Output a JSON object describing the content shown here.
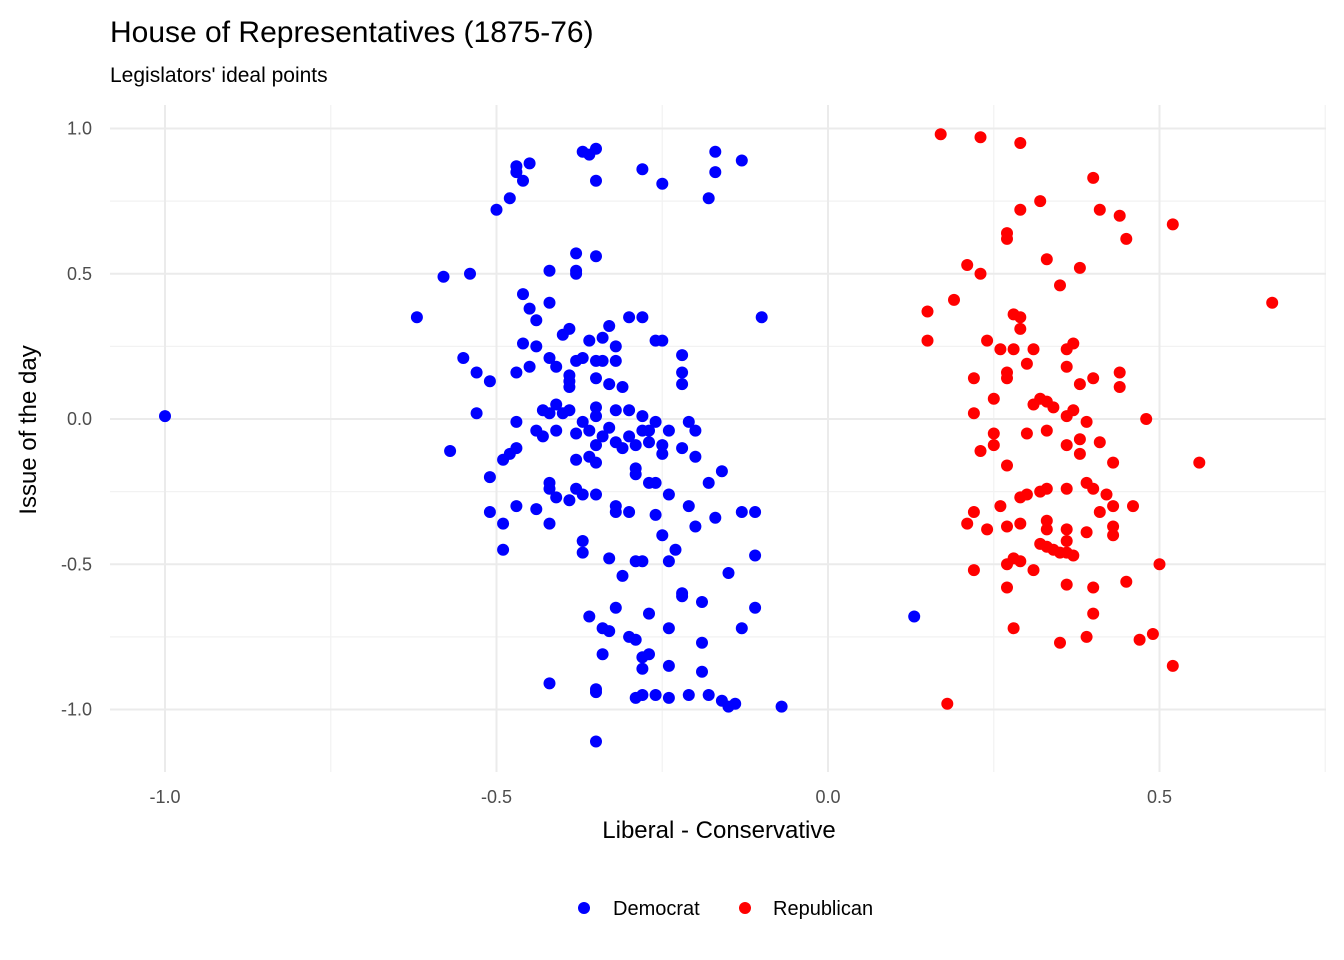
{
  "chart_data": {
    "type": "scatter",
    "title": "House of Representatives (1875-76)",
    "subtitle": "Legislators' ideal points",
    "xlabel": "Liberal - Conservative",
    "ylabel": "Issue of the day",
    "xlim": [
      -1.05,
      0.75
    ],
    "ylim": [
      -1.12,
      1.01
    ],
    "x_ticks": [
      -1.0,
      -0.5,
      0.0,
      0.5
    ],
    "x_tick_labels": [
      "-1.0",
      "-0.5",
      "0.0",
      "0.5"
    ],
    "y_ticks": [
      1.0,
      0.5,
      0.0,
      -0.5,
      -1.0
    ],
    "y_tick_labels": [
      "1.0",
      "0.5",
      "0.0",
      "-0.5",
      "-1.0"
    ],
    "grid": true,
    "legend_position": "bottom",
    "series": [
      {
        "name": "Democrat",
        "color": "#0000ff",
        "points": [
          [
            -1.0,
            0.01
          ],
          [
            -0.37,
            0.92
          ],
          [
            -0.36,
            0.91
          ],
          [
            -0.35,
            0.93
          ],
          [
            -0.47,
            0.87
          ],
          [
            -0.45,
            0.88
          ],
          [
            -0.47,
            0.85
          ],
          [
            -0.46,
            0.82
          ],
          [
            -0.35,
            0.82
          ],
          [
            -0.28,
            0.86
          ],
          [
            -0.25,
            0.81
          ],
          [
            -0.17,
            0.92
          ],
          [
            -0.17,
            0.85
          ],
          [
            -0.13,
            0.89
          ],
          [
            -0.48,
            0.76
          ],
          [
            -0.5,
            0.72
          ],
          [
            -0.18,
            0.76
          ],
          [
            -0.38,
            0.57
          ],
          [
            -0.35,
            0.56
          ],
          [
            -0.38,
            0.51
          ],
          [
            -0.38,
            0.5
          ],
          [
            -0.42,
            0.51
          ],
          [
            -0.58,
            0.49
          ],
          [
            -0.54,
            0.5
          ],
          [
            -0.46,
            0.43
          ],
          [
            -0.42,
            0.4
          ],
          [
            -0.45,
            0.38
          ],
          [
            -0.44,
            0.34
          ],
          [
            -0.62,
            0.35
          ],
          [
            -0.3,
            0.35
          ],
          [
            -0.28,
            0.35
          ],
          [
            -0.1,
            0.35
          ],
          [
            -0.33,
            0.32
          ],
          [
            -0.39,
            0.31
          ],
          [
            -0.4,
            0.29
          ],
          [
            -0.36,
            0.27
          ],
          [
            -0.34,
            0.28
          ],
          [
            -0.32,
            0.25
          ],
          [
            -0.26,
            0.27
          ],
          [
            -0.25,
            0.27
          ],
          [
            -0.46,
            0.26
          ],
          [
            -0.44,
            0.25
          ],
          [
            -0.42,
            0.21
          ],
          [
            -0.55,
            0.21
          ],
          [
            -0.53,
            0.16
          ],
          [
            -0.51,
            0.13
          ],
          [
            -0.47,
            0.16
          ],
          [
            -0.45,
            0.18
          ],
          [
            -0.41,
            0.18
          ],
          [
            -0.38,
            0.2
          ],
          [
            -0.37,
            0.21
          ],
          [
            -0.35,
            0.2
          ],
          [
            -0.34,
            0.2
          ],
          [
            -0.32,
            0.2
          ],
          [
            -0.39,
            0.15
          ],
          [
            -0.39,
            0.13
          ],
          [
            -0.39,
            0.11
          ],
          [
            -0.35,
            0.14
          ],
          [
            -0.33,
            0.12
          ],
          [
            -0.31,
            0.11
          ],
          [
            -0.22,
            0.22
          ],
          [
            -0.22,
            0.16
          ],
          [
            -0.22,
            0.12
          ],
          [
            -0.53,
            0.02
          ],
          [
            -0.47,
            -0.01
          ],
          [
            -0.43,
            0.03
          ],
          [
            -0.42,
            0.02
          ],
          [
            -0.41,
            0.05
          ],
          [
            -0.4,
            0.02
          ],
          [
            -0.39,
            0.03
          ],
          [
            -0.37,
            -0.01
          ],
          [
            -0.35,
            0.04
          ],
          [
            -0.35,
            0.01
          ],
          [
            -0.32,
            0.03
          ],
          [
            -0.3,
            0.03
          ],
          [
            -0.28,
            0.01
          ],
          [
            -0.26,
            -0.01
          ],
          [
            -0.21,
            -0.01
          ],
          [
            -0.57,
            -0.11
          ],
          [
            -0.44,
            -0.04
          ],
          [
            -0.43,
            -0.06
          ],
          [
            -0.41,
            -0.04
          ],
          [
            -0.38,
            -0.05
          ],
          [
            -0.36,
            -0.04
          ],
          [
            -0.35,
            -0.09
          ],
          [
            -0.34,
            -0.06
          ],
          [
            -0.33,
            -0.03
          ],
          [
            -0.32,
            -0.08
          ],
          [
            -0.3,
            -0.06
          ],
          [
            -0.28,
            -0.04
          ],
          [
            -0.27,
            -0.04
          ],
          [
            -0.24,
            -0.04
          ],
          [
            -0.2,
            -0.04
          ],
          [
            -0.47,
            -0.1
          ],
          [
            -0.48,
            -0.12
          ],
          [
            -0.49,
            -0.14
          ],
          [
            -0.36,
            -0.13
          ],
          [
            -0.31,
            -0.1
          ],
          [
            -0.29,
            -0.09
          ],
          [
            -0.27,
            -0.08
          ],
          [
            -0.25,
            -0.09
          ],
          [
            -0.25,
            -0.12
          ],
          [
            -0.22,
            -0.1
          ],
          [
            -0.2,
            -0.13
          ],
          [
            -0.29,
            -0.17
          ],
          [
            -0.38,
            -0.14
          ],
          [
            -0.35,
            -0.15
          ],
          [
            -0.51,
            -0.2
          ],
          [
            -0.42,
            -0.22
          ],
          [
            -0.42,
            -0.24
          ],
          [
            -0.38,
            -0.24
          ],
          [
            -0.37,
            -0.26
          ],
          [
            -0.35,
            -0.26
          ],
          [
            -0.29,
            -0.19
          ],
          [
            -0.27,
            -0.22
          ],
          [
            -0.26,
            -0.22
          ],
          [
            -0.24,
            -0.26
          ],
          [
            -0.18,
            -0.22
          ],
          [
            -0.16,
            -0.18
          ],
          [
            -0.51,
            -0.32
          ],
          [
            -0.49,
            -0.36
          ],
          [
            -0.47,
            -0.3
          ],
          [
            -0.44,
            -0.31
          ],
          [
            -0.41,
            -0.27
          ],
          [
            -0.39,
            -0.28
          ],
          [
            -0.42,
            -0.36
          ],
          [
            -0.32,
            -0.3
          ],
          [
            -0.32,
            -0.32
          ],
          [
            -0.3,
            -0.32
          ],
          [
            -0.26,
            -0.33
          ],
          [
            -0.21,
            -0.3
          ],
          [
            -0.17,
            -0.34
          ],
          [
            -0.11,
            -0.32
          ],
          [
            -0.49,
            -0.45
          ],
          [
            -0.37,
            -0.42
          ],
          [
            -0.37,
            -0.46
          ],
          [
            -0.33,
            -0.48
          ],
          [
            -0.29,
            -0.49
          ],
          [
            -0.28,
            -0.49
          ],
          [
            -0.25,
            -0.4
          ],
          [
            -0.23,
            -0.45
          ],
          [
            -0.2,
            -0.37
          ],
          [
            -0.13,
            -0.32
          ],
          [
            -0.11,
            -0.47
          ],
          [
            -0.31,
            -0.54
          ],
          [
            -0.24,
            -0.49
          ],
          [
            -0.22,
            -0.6
          ],
          [
            -0.22,
            -0.61
          ],
          [
            -0.19,
            -0.63
          ],
          [
            -0.15,
            -0.53
          ],
          [
            -0.36,
            -0.68
          ],
          [
            -0.34,
            -0.72
          ],
          [
            -0.32,
            -0.65
          ],
          [
            -0.3,
            -0.75
          ],
          [
            -0.29,
            -0.76
          ],
          [
            -0.27,
            -0.67
          ],
          [
            -0.24,
            -0.72
          ],
          [
            -0.24,
            -0.85
          ],
          [
            -0.19,
            -0.77
          ],
          [
            -0.19,
            -0.87
          ],
          [
            -0.13,
            -0.72
          ],
          [
            -0.11,
            -0.65
          ],
          [
            -0.33,
            -0.73
          ],
          [
            -0.34,
            -0.81
          ],
          [
            -0.28,
            -0.82
          ],
          [
            -0.28,
            -0.86
          ],
          [
            -0.27,
            -0.81
          ],
          [
            -0.42,
            -0.91
          ],
          [
            -0.35,
            -0.93
          ],
          [
            -0.35,
            -0.94
          ],
          [
            -0.29,
            -0.96
          ],
          [
            -0.28,
            -0.95
          ],
          [
            -0.26,
            -0.95
          ],
          [
            -0.24,
            -0.96
          ],
          [
            -0.21,
            -0.95
          ],
          [
            -0.18,
            -0.95
          ],
          [
            -0.16,
            -0.97
          ],
          [
            -0.15,
            -0.99
          ],
          [
            -0.14,
            -0.98
          ],
          [
            -0.07,
            -0.99
          ],
          [
            -0.35,
            -1.11
          ],
          [
            0.13,
            -0.68
          ]
        ]
      },
      {
        "name": "Republican",
        "color": "#ff0000",
        "points": [
          [
            0.17,
            0.98
          ],
          [
            0.23,
            0.97
          ],
          [
            0.29,
            0.95
          ],
          [
            0.4,
            0.83
          ],
          [
            0.32,
            0.75
          ],
          [
            0.29,
            0.72
          ],
          [
            0.41,
            0.72
          ],
          [
            0.44,
            0.7
          ],
          [
            0.52,
            0.67
          ],
          [
            0.27,
            0.64
          ],
          [
            0.27,
            0.62
          ],
          [
            0.45,
            0.62
          ],
          [
            0.33,
            0.55
          ],
          [
            0.21,
            0.53
          ],
          [
            0.23,
            0.5
          ],
          [
            0.38,
            0.52
          ],
          [
            0.35,
            0.46
          ],
          [
            0.19,
            0.41
          ],
          [
            0.15,
            0.37
          ],
          [
            0.28,
            0.36
          ],
          [
            0.29,
            0.35
          ],
          [
            0.29,
            0.31
          ],
          [
            0.15,
            0.27
          ],
          [
            0.24,
            0.27
          ],
          [
            0.26,
            0.24
          ],
          [
            0.28,
            0.24
          ],
          [
            0.31,
            0.24
          ],
          [
            0.36,
            0.18
          ],
          [
            0.36,
            0.24
          ],
          [
            0.37,
            0.26
          ],
          [
            0.67,
            0.4
          ],
          [
            0.22,
            0.14
          ],
          [
            0.27,
            0.14
          ],
          [
            0.27,
            0.16
          ],
          [
            0.3,
            0.19
          ],
          [
            0.38,
            0.12
          ],
          [
            0.4,
            0.14
          ],
          [
            0.44,
            0.16
          ],
          [
            0.44,
            0.11
          ],
          [
            0.25,
            0.07
          ],
          [
            0.31,
            0.05
          ],
          [
            0.32,
            0.07
          ],
          [
            0.33,
            0.06
          ],
          [
            0.34,
            0.04
          ],
          [
            0.22,
            0.02
          ],
          [
            0.37,
            0.03
          ],
          [
            0.36,
            0.01
          ],
          [
            0.39,
            -0.01
          ],
          [
            0.48,
            0.0
          ],
          [
            0.25,
            -0.05
          ],
          [
            0.3,
            -0.05
          ],
          [
            0.33,
            -0.04
          ],
          [
            0.36,
            -0.09
          ],
          [
            0.38,
            -0.07
          ],
          [
            0.41,
            -0.08
          ],
          [
            0.23,
            -0.11
          ],
          [
            0.25,
            -0.09
          ],
          [
            0.27,
            -0.16
          ],
          [
            0.38,
            -0.12
          ],
          [
            0.43,
            -0.15
          ],
          [
            0.56,
            -0.15
          ],
          [
            0.29,
            -0.27
          ],
          [
            0.3,
            -0.26
          ],
          [
            0.32,
            -0.25
          ],
          [
            0.33,
            -0.24
          ],
          [
            0.36,
            -0.24
          ],
          [
            0.39,
            -0.22
          ],
          [
            0.4,
            -0.24
          ],
          [
            0.42,
            -0.26
          ],
          [
            0.41,
            -0.32
          ],
          [
            0.43,
            -0.3
          ],
          [
            0.46,
            -0.3
          ],
          [
            0.21,
            -0.36
          ],
          [
            0.22,
            -0.32
          ],
          [
            0.24,
            -0.38
          ],
          [
            0.26,
            -0.3
          ],
          [
            0.27,
            -0.37
          ],
          [
            0.29,
            -0.36
          ],
          [
            0.33,
            -0.38
          ],
          [
            0.33,
            -0.35
          ],
          [
            0.36,
            -0.38
          ],
          [
            0.36,
            -0.42
          ],
          [
            0.39,
            -0.39
          ],
          [
            0.43,
            -0.37
          ],
          [
            0.43,
            -0.4
          ],
          [
            0.32,
            -0.43
          ],
          [
            0.33,
            -0.44
          ],
          [
            0.34,
            -0.45
          ],
          [
            0.35,
            -0.46
          ],
          [
            0.36,
            -0.46
          ],
          [
            0.37,
            -0.47
          ],
          [
            0.29,
            -0.49
          ],
          [
            0.28,
            -0.48
          ],
          [
            0.27,
            -0.5
          ],
          [
            0.31,
            -0.52
          ],
          [
            0.22,
            -0.52
          ],
          [
            0.5,
            -0.5
          ],
          [
            0.27,
            -0.58
          ],
          [
            0.36,
            -0.57
          ],
          [
            0.4,
            -0.58
          ],
          [
            0.45,
            -0.56
          ],
          [
            0.4,
            -0.67
          ],
          [
            0.28,
            -0.72
          ],
          [
            0.35,
            -0.77
          ],
          [
            0.39,
            -0.75
          ],
          [
            0.47,
            -0.76
          ],
          [
            0.49,
            -0.74
          ],
          [
            0.52,
            -0.85
          ],
          [
            0.18,
            -0.98
          ]
        ]
      }
    ]
  }
}
